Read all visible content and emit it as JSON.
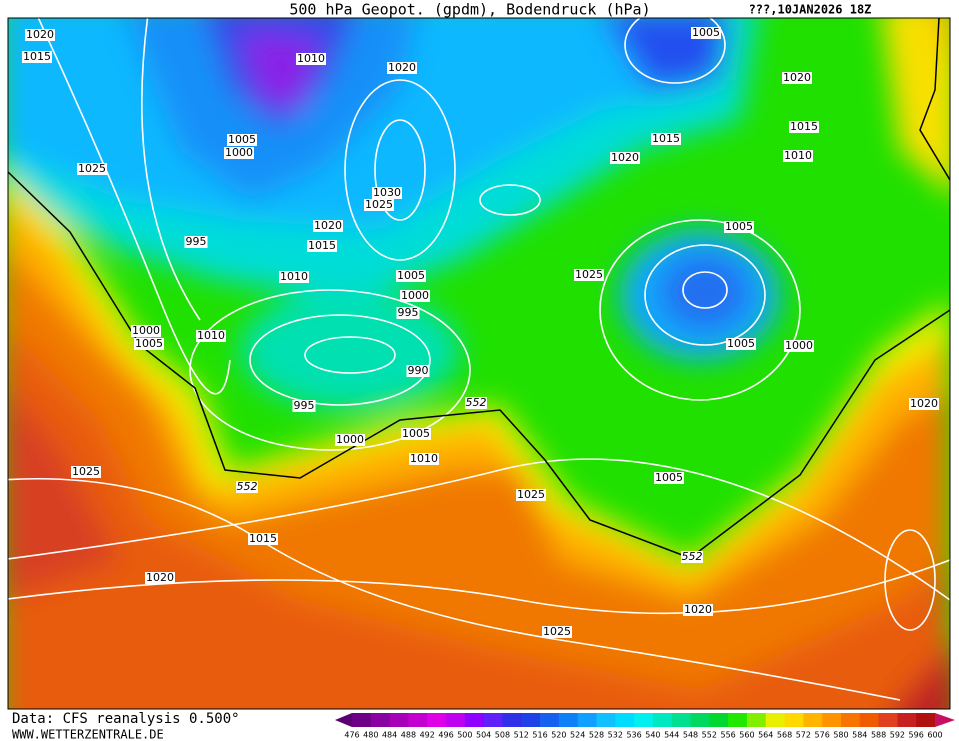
{
  "header": {
    "title": "500 hPa Geopot. (gpdm), Bodendruck (hPa)",
    "run": "???,10JAN2026 18Z"
  },
  "map": {
    "isobar_labels": [
      "1020",
      "1015",
      "1010",
      "1020",
      "1005",
      "1020",
      "1005",
      "1000",
      "1025",
      "1015",
      "1020",
      "1015",
      "1010",
      "1030",
      "1025",
      "1020",
      "1015",
      "995",
      "1005",
      "1010",
      "1005",
      "1025",
      "1000",
      "995",
      "1000",
      "1005",
      "1010",
      "1005",
      "1000",
      "990",
      "995",
      "1020",
      "1000",
      "1005",
      "1010",
      "1025",
      "1005",
      "1015",
      "1020",
      "1020",
      "1025",
      "1025"
    ],
    "contour_labels": [
      "552",
      "552",
      "552"
    ]
  },
  "footer": {
    "source": "Data: CFS reanalysis 0.500°",
    "site": "WWW.WETTERZENTRALE.DE"
  },
  "colorbar": {
    "labels": [
      476,
      480,
      484,
      488,
      492,
      496,
      500,
      504,
      508,
      512,
      516,
      520,
      524,
      528,
      532,
      536,
      540,
      544,
      548,
      552,
      556,
      560,
      564,
      568,
      572,
      576,
      580,
      584,
      588,
      592,
      596,
      600
    ],
    "colors": [
      "#5a0070",
      "#6e0088",
      "#8a00a0",
      "#a600b8",
      "#c400d0",
      "#e000e8",
      "#c000f0",
      "#9000ff",
      "#6020f8",
      "#3030e8",
      "#2040e8",
      "#1860f0",
      "#1080f8",
      "#10a0ff",
      "#10c0ff",
      "#00dcff",
      "#00f0f0",
      "#00e8c0",
      "#00e090",
      "#00d860",
      "#00d830",
      "#20e800",
      "#80f000",
      "#e8f000",
      "#ffd800",
      "#ffb400",
      "#ff9400",
      "#f87400",
      "#f05a00",
      "#e04020",
      "#c82020",
      "#b01010",
      "#c81060"
    ]
  }
}
